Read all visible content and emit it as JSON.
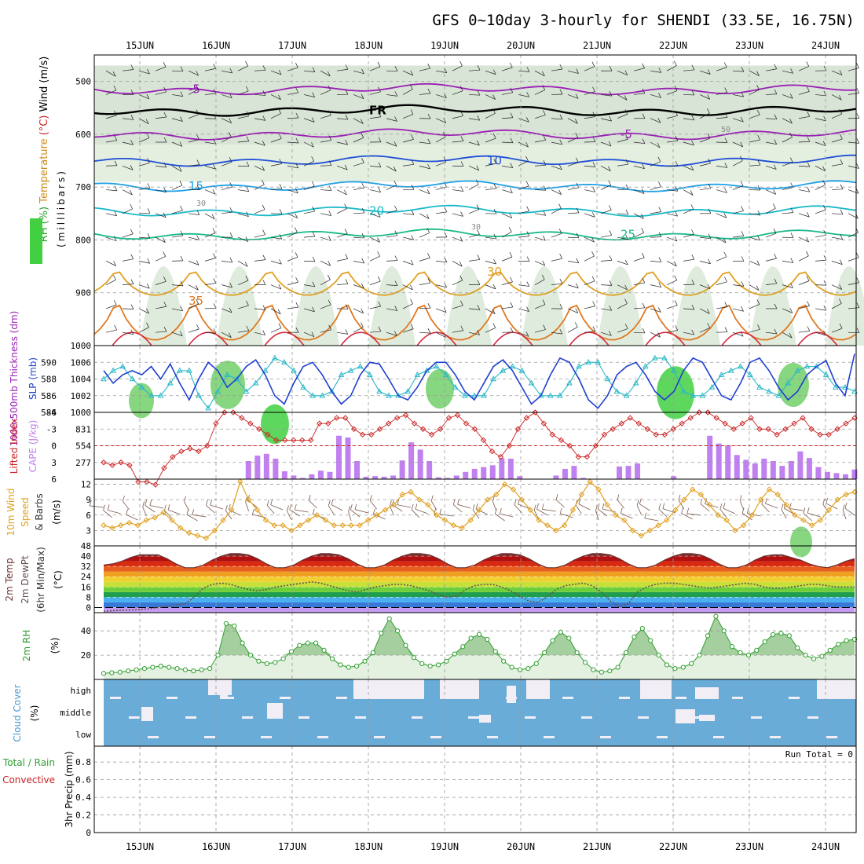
{
  "title": "GFS 0~10day 3-hourly for SHENDI (33.5E, 16.75N)",
  "chart_data": {
    "type": "line",
    "time_axis": {
      "labels": [
        "15JUN",
        "16JUN",
        "17JUN",
        "18JUN",
        "19JUN",
        "20JUN",
        "21JUN",
        "22JUN",
        "23JUN",
        "24JUN"
      ],
      "start": "2024-06-14T12:00",
      "end": "2024-06-24T06:00",
      "step_hours": 3
    },
    "panels": [
      {
        "id": "upper",
        "ylabel_parts": [
          {
            "text": "RH (%)",
            "color": "#2e9e2e"
          },
          {
            "text": "Temperature",
            "color": "#cc8a1a"
          },
          {
            "text": "(°C)",
            "color": "#cc2222"
          },
          {
            "text": "Wind (m/s)",
            "color": "#000000"
          }
        ],
        "ylabel2": "(milllibars)",
        "yticks": [
          500,
          600,
          700,
          800,
          900,
          1000
        ],
        "ylim": [
          450,
          1000
        ],
        "invert": true,
        "contours": [
          {
            "label": "-5",
            "color": "#9a1fb5",
            "level_mb": 515
          },
          {
            "label": "FR",
            "color": "#000000",
            "level_mb": 555
          },
          {
            "label": "-5",
            "color": "#9a1fb5",
            "level_mb": 600
          },
          {
            "label": "10",
            "color": "#1f4fd6",
            "level_mb": 650
          },
          {
            "label": "15",
            "color": "#1ea0e6",
            "level_mb": 698
          },
          {
            "label": "20",
            "color": "#18b9c8",
            "level_mb": 745
          },
          {
            "label": "25",
            "color": "#1ab88a",
            "level_mb": 790
          },
          {
            "label": "30",
            "color": "#e0a020",
            "level_mb": 860
          },
          {
            "label": "35",
            "color": "#e07820",
            "level_mb": 915
          }
        ],
        "rh_labels": [
          "30",
          "50"
        ]
      },
      {
        "id": "thickness_slp",
        "ylabel_left": "1000-500mb Thickness (dm)",
        "ylabel_right": "SLP (mb)",
        "yticks_thickness": [
          584,
          586,
          588,
          590
        ],
        "yticks_slp": [
          1000,
          1002,
          1004,
          1006
        ],
        "ylim_slp": [
          1000,
          1008
        ],
        "series": [
          {
            "name": "SLP (mb)",
            "color": "#1f3fd0",
            "values": [
              1005,
              1003.5,
              1004.5,
              1005,
              1004.5,
              1005.5,
              1004,
              1005.8,
              1003.5,
              1001.5,
              1004,
              1006,
              1005,
              1003,
              1004,
              1005.5,
              1006.3,
              1004.5,
              1002,
              1001,
              1003.5,
              1005.5,
              1006,
              1004.5,
              1002.5,
              1001,
              1002,
              1004.5,
              1006,
              1005.8,
              1004,
              1002,
              1001.5,
              1003,
              1005,
              1006,
              1006,
              1004.5,
              1002.5,
              1001.5,
              1003.5,
              1005.5,
              1006.3,
              1005,
              1003,
              1001,
              1002,
              1004.5,
              1006.5,
              1006,
              1004,
              1001.5,
              1000.5,
              1002,
              1004.5,
              1005.5,
              1006,
              1004.5,
              1002.5,
              1001.5,
              1002.5,
              1005,
              1006.5,
              1006,
              1004,
              1002,
              1001.5,
              1003.5,
              1006,
              1006.5,
              1005,
              1003,
              1001.5,
              1002.5,
              1004.5,
              1005.5,
              1006.2,
              1003.5,
              1002,
              1007
            ]
          },
          {
            "name": "1000-500mb Thickness (dm)",
            "color": "#2ab8c8",
            "values": [
              1004,
              1005,
              1005.5,
              1004,
              1003,
              1002,
              1002,
              1003.5,
              1005,
              1005,
              1002,
              1000.5,
              1002.5,
              1004.5,
              1004,
              1002.5,
              1003.5,
              1005,
              1006.5,
              1006,
              1005,
              1003,
              1002,
              1002,
              1002.5,
              1004.5,
              1005,
              1005.5,
              1004.5,
              1002.5,
              1002,
              1002,
              1002.5,
              1004.5,
              1005,
              1005.5,
              1004.5,
              1003,
              1002,
              1002,
              1002,
              1004,
              1005,
              1005.5,
              1005,
              1003.5,
              1002,
              1002,
              1002,
              1003.5,
              1005.5,
              1006,
              1006,
              1004,
              1002.5,
              1002,
              1003.5,
              1005.5,
              1006.5,
              1006.5,
              1005,
              1002.5,
              1002,
              1002,
              1003,
              1004.5,
              1005,
              1005.5,
              1004.5,
              1003,
              1002.5,
              1002,
              1003.5,
              1005,
              1005.5,
              1005.5,
              1004.5,
              1003,
              1003,
              1002.5
            ]
          }
        ]
      },
      {
        "id": "cape_li",
        "ylabel_left": "Lifted Index",
        "ylabel_right": "CAPE (J/kg)",
        "yticks_li": [
          "-6",
          "-3",
          "0",
          "3",
          "6"
        ],
        "yticks_cape": [
          277,
          554,
          831
        ],
        "ylim_cape": [
          0,
          1108
        ],
        "series": [
          {
            "name": "Lifted Index",
            "color": "#cc2222",
            "values": [
              3,
              3.5,
              3,
              3.5,
              6.5,
              6.5,
              7,
              4,
              2,
              1,
              0.5,
              1,
              0,
              -4,
              -6,
              -6,
              -5,
              -4,
              -3,
              -2,
              -1,
              -1,
              -1,
              -1,
              -1,
              -4,
              -4,
              -5,
              -5,
              -3,
              -2,
              -2,
              -3,
              -4,
              -5,
              -5.5,
              -4,
              -3,
              -2,
              -3,
              -5,
              -5.5,
              -4,
              -3,
              -1,
              1,
              2,
              0,
              -3,
              -5,
              -6,
              -4,
              -2,
              -1,
              0,
              2,
              2,
              0,
              -2,
              -3,
              -4,
              -5,
              -4,
              -3,
              -2,
              -2,
              -3,
              -4,
              -5,
              -6,
              -6,
              -5,
              -4,
              -3,
              -4,
              -5,
              -3,
              -3,
              -2,
              -3,
              -4,
              -5,
              -3,
              -2,
              -2,
              -3,
              -4,
              -5
            ]
          },
          {
            "name": "CAPE (J/kg)",
            "color": "#c080f0",
            "values": [
              0,
              0,
              0,
              0,
              0,
              0,
              0,
              0,
              0,
              0,
              0,
              0,
              0,
              0,
              0,
              0,
              300,
              390,
              420,
              340,
              130,
              60,
              20,
              80,
              140,
              120,
              720,
              690,
              300,
              40,
              50,
              40,
              60,
              310,
              610,
              490,
              300,
              30,
              20,
              60,
              120,
              170,
              200,
              230,
              350,
              340,
              50,
              0,
              0,
              0,
              60,
              170,
              220,
              20,
              0,
              0,
              0,
              210,
              220,
              260,
              0,
              0,
              0,
              50,
              0,
              0,
              0,
              720,
              590,
              550,
              400,
              320,
              260,
              340,
              300,
              220,
              300,
              460,
              350,
              200,
              120,
              100,
              80,
              160
            ]
          }
        ]
      },
      {
        "id": "wind10m",
        "ylabel": "10m Wind Speed & Barbs (m/s)",
        "yticks": [
          3,
          6,
          9,
          12
        ],
        "ylim": [
          0,
          13
        ],
        "series": [
          {
            "name": "10m Wind Speed",
            "color": "#e0a020",
            "values": [
              4,
              3.5,
              4,
              4.5,
              4,
              5,
              5.5,
              6.5,
              5,
              3.5,
              2.5,
              2,
              1.5,
              3,
              5,
              7,
              12.5,
              9,
              7,
              5,
              4,
              4,
              3,
              4,
              5,
              6,
              5,
              4,
              4,
              4,
              4,
              5,
              6,
              7,
              8,
              10,
              10.5,
              9,
              8,
              6,
              5,
              4,
              3.5,
              5,
              7,
              9,
              10,
              12,
              11,
              9,
              7,
              5,
              4,
              3,
              4,
              7,
              10,
              12.5,
              11,
              8,
              6,
              5,
              3,
              2,
              3,
              4,
              5,
              7,
              9,
              11,
              10,
              8,
              6,
              5,
              3,
              4,
              6,
              9,
              11,
              10,
              8,
              6,
              5,
              4,
              5,
              7,
              9,
              10,
              10.5
            ]
          }
        ]
      },
      {
        "id": "temp2m",
        "ylabel": "2m Temp 2m DewPt (6hr Min/Max) (°C)",
        "yticks": [
          0,
          8,
          16,
          24,
          32,
          40,
          48
        ],
        "ylim": [
          -4,
          48
        ],
        "band_colors": [
          "#c49bf0",
          "#3a78d8",
          "#4ab0f0",
          "#1e9e4e",
          "#6ecf3a",
          "#c8e03a",
          "#f0d030",
          "#f0a020",
          "#e86020",
          "#d82a10",
          "#b01010",
          "#7a3030"
        ],
        "series": [
          {
            "name": "2m Temp",
            "color": "#6a3030",
            "values": [
              33,
              34,
              36,
              39,
              41,
              41,
              41,
              38,
              34,
              31,
              31,
              33,
              37,
              40,
              42,
              42,
              41,
              38,
              34,
              31,
              31,
              33,
              37,
              40,
              42,
              42,
              41,
              38,
              34,
              31,
              31,
              33,
              37,
              40,
              42,
              42,
              41,
              38,
              34,
              31,
              31,
              33,
              37,
              40,
              42,
              42,
              41,
              38,
              34,
              31,
              31,
              33,
              37,
              40,
              42,
              42,
              41,
              38,
              34,
              31,
              31,
              33,
              37,
              40,
              42,
              42,
              41,
              38,
              34,
              31,
              31,
              33,
              37,
              40,
              41,
              41,
              39,
              37,
              34,
              32,
              31,
              33,
              36,
              38
            ]
          },
          {
            "name": "2m DewPt",
            "color": "#7a6a6a",
            "values": [
              -3,
              -2.5,
              -2,
              -2,
              -1.5,
              -1,
              0,
              1,
              2,
              3,
              8,
              15,
              18,
              19,
              18,
              16,
              14,
              13,
              14,
              16,
              17,
              18,
              19,
              20,
              19,
              17,
              15,
              13,
              12,
              14,
              16,
              17,
              18,
              18,
              17,
              15,
              13,
              10,
              8,
              9,
              14,
              17,
              18,
              18,
              16,
              13,
              9,
              5,
              4,
              8,
              14,
              17,
              18,
              19,
              17,
              12,
              5,
              1,
              3,
              12,
              16,
              18,
              19,
              19,
              18,
              17,
              16,
              15,
              16,
              17,
              18,
              19,
              18,
              16,
              15,
              15,
              16,
              17,
              18,
              18,
              17,
              16,
              16,
              16
            ]
          }
        ]
      },
      {
        "id": "rh2m",
        "ylabel": "2m RH (%)",
        "yticks": [
          20,
          40
        ],
        "ylim": [
          0,
          55
        ],
        "series": [
          {
            "name": "2m RH",
            "color": "#2e9e2e",
            "values": [
              5,
              5.5,
              6,
              7,
              8,
              9,
              10,
              11,
              10,
              9,
              8,
              7,
              8,
              9,
              20,
              46,
              44,
              30,
              20,
              15,
              13,
              14,
              17,
              23,
              28,
              30,
              30,
              24,
              17,
              12,
              10,
              11,
              15,
              22,
              38,
              50,
              40,
              28,
              18,
              13,
              11,
              12,
              15,
              21,
              27,
              34,
              37,
              33,
              23,
              15,
              10,
              8,
              9,
              13,
              22,
              32,
              39,
              34,
              22,
              14,
              8,
              6,
              7,
              10,
              22,
              35,
              42,
              32,
              20,
              12,
              9,
              10,
              13,
              20,
              36,
              52,
              40,
              27,
              22,
              20,
              24,
              31,
              37,
              38,
              36,
              26,
              20,
              17,
              19,
              24,
              29,
              32,
              33
            ]
          }
        ]
      },
      {
        "id": "cloud",
        "ylabel": "Cloud Cover (%)",
        "rows": [
          "high",
          "middle",
          "low"
        ],
        "colors": {
          "cover": "#6aacd8",
          "clear": "#f2eef6"
        }
      },
      {
        "id": "precip",
        "ylabel_parts": [
          {
            "text": "Total / Rain",
            "color": "#2e9e2e"
          },
          {
            "text": "Convective",
            "color": "#cc2222"
          }
        ],
        "ylabel": "3hr Precip (mm)",
        "yticks": [
          "0",
          "0.2",
          "0.4",
          "0.6",
          "0.8"
        ],
        "ylim": [
          0,
          0.98
        ],
        "run_total": "Run Total = 0",
        "values": []
      }
    ]
  }
}
